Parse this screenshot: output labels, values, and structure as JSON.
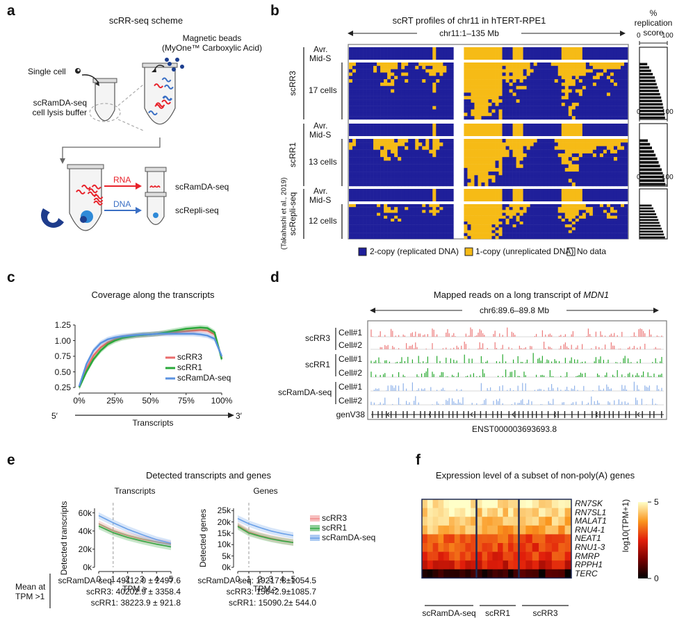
{
  "panels": {
    "a": "a",
    "b": "b",
    "c": "c",
    "d": "d",
    "e": "e",
    "f": "f"
  },
  "a": {
    "title": "scRR-seq scheme",
    "single_cell": "Single cell",
    "beads1": "Magnetic beads",
    "beads2": "(MyOne™ Carboxylic Acid)",
    "buffer1": "scRamDA-seq",
    "buffer2": "cell lysis buffer",
    "rna": "RNA",
    "dna": "DNA",
    "out_rna": "scRamDA-seq",
    "out_dna": "scRepli-seq",
    "colors": {
      "rna": "#e8222a",
      "dna": "#3a6fc4",
      "beads": "#1d3f8f",
      "magnet": "#1e3c8c"
    }
  },
  "b": {
    "title": "scRT profiles of chr11 in hTERT-RPE1",
    "region": "chr11:1–135 Mb",
    "score_label": [
      "%",
      "replication",
      "score"
    ],
    "groups": [
      {
        "name": "scRR3",
        "avg1": "Avr.",
        "avg2": "Mid-S",
        "cells": "17 cells",
        "n": 17,
        "scores": [
          28,
          35,
          42,
          48,
          55,
          58,
          62,
          66,
          70,
          74,
          78,
          81,
          84,
          86,
          88,
          90,
          92
        ]
      },
      {
        "name": "scRR1",
        "avg1": "Avr.",
        "avg2": "Mid-S",
        "cells": "13 cells",
        "n": 13,
        "scores": [
          30,
          38,
          45,
          52,
          58,
          64,
          69,
          74,
          80,
          84,
          87,
          90,
          93
        ]
      },
      {
        "name": "scRepli-seq",
        "sub": "(Takahashi et al., 2019)",
        "avg1": "Avr.",
        "avg2": "Mid-S",
        "cells": "12 cells",
        "n": 12,
        "scores": [
          44,
          50,
          55,
          60,
          64,
          68,
          72,
          76,
          80,
          85,
          88,
          92
        ]
      }
    ],
    "axis": {
      "min": "0",
      "max": "100"
    },
    "legend": {
      "rep": "2-copy (replicated DNA)",
      "unrep": "1-copy (unreplicated DNA)",
      "nodata": "No data"
    },
    "colors": {
      "rep": "#1f1f9a",
      "unrep": "#f6bb16"
    }
  },
  "c": {
    "title": "Coverage along the transcripts",
    "xlabel": "Transcripts",
    "five": "5′",
    "three": "3′",
    "chart_data": {
      "type": "line",
      "title": "Coverage along the transcripts",
      "xlabel": "Transcripts",
      "x_ticks": [
        "0%",
        "25%",
        "50%",
        "75%",
        "100%"
      ],
      "y_ticks": [
        "0.25",
        "0.50",
        "0.75",
        "1.00",
        "1.25"
      ],
      "ylim": [
        0.25,
        1.25
      ],
      "x": [
        0,
        5,
        10,
        15,
        20,
        25,
        30,
        35,
        40,
        45,
        50,
        55,
        60,
        65,
        70,
        75,
        80,
        85,
        90,
        95,
        100
      ],
      "series": [
        {
          "name": "scRR3",
          "color": "#ea6b6b",
          "values": [
            0.26,
            0.55,
            0.76,
            0.89,
            0.97,
            1.02,
            1.05,
            1.07,
            1.08,
            1.09,
            1.1,
            1.11,
            1.12,
            1.13,
            1.14,
            1.15,
            1.16,
            1.17,
            1.16,
            1.1,
            0.72
          ]
        },
        {
          "name": "scRR1",
          "color": "#2aa83a",
          "values": [
            0.25,
            0.5,
            0.7,
            0.84,
            0.94,
            1.0,
            1.04,
            1.06,
            1.08,
            1.09,
            1.1,
            1.11,
            1.13,
            1.15,
            1.17,
            1.19,
            1.2,
            1.21,
            1.2,
            1.13,
            0.7
          ]
        },
        {
          "name": "scRamDA-seq",
          "color": "#5a92e0",
          "values": [
            0.27,
            0.62,
            0.84,
            0.96,
            1.02,
            1.05,
            1.07,
            1.08,
            1.09,
            1.1,
            1.1,
            1.11,
            1.11,
            1.11,
            1.11,
            1.11,
            1.11,
            1.1,
            1.08,
            1.03,
            0.75
          ]
        }
      ]
    }
  },
  "d": {
    "title": "Mapped reads on a long transcript of ",
    "gene": "MDN1",
    "region": "chr6:89.6–89.8 Mb",
    "rows": [
      {
        "group": "scRR3",
        "cell": "Cell#1",
        "color": "#ec7a7a"
      },
      {
        "group": "",
        "cell": "Cell#2",
        "color": "#ec7a7a"
      },
      {
        "group": "scRR1",
        "cell": "Cell#1",
        "color": "#27a92e"
      },
      {
        "group": "",
        "cell": "Cell#2",
        "color": "#27a92e"
      },
      {
        "group": "scRamDA-seq",
        "cell": "Cell#1",
        "color": "#8fb2ea"
      },
      {
        "group": "",
        "cell": "Cell#2",
        "color": "#8fb2ea"
      }
    ],
    "genv": "genV38",
    "transcript": "ENST000003693693.8"
  },
  "e": {
    "title": "Detected transcripts and genes",
    "chart_data": [
      {
        "type": "line",
        "title": "Transcripts",
        "ylabel": "Detected transcripts",
        "xlabel": "TPM >",
        "x": [
          0,
          1,
          2,
          3,
          4,
          5
        ],
        "x_ticks": [
          "0",
          "1",
          "2",
          "3",
          "4",
          "5"
        ],
        "y_ticks": [
          "0k",
          "20k",
          "40k",
          "60k"
        ],
        "ylim": [
          0,
          65000
        ],
        "series": [
          {
            "name": "scRR3",
            "values": [
              48000,
              40200,
              35000,
              31000,
              28000,
              25500
            ]
          },
          {
            "name": "scRR1",
            "values": [
              45500,
              38200,
              33000,
              29000,
              25500,
              22500
            ]
          },
          {
            "name": "scRamDA-seq",
            "values": [
              57000,
              49100,
              42000,
              36000,
              30500,
              26500
            ]
          }
        ]
      },
      {
        "type": "line",
        "title": "Genes",
        "ylabel": "Detected genes",
        "xlabel": "TPM >",
        "x": [
          0,
          1,
          2,
          3,
          4,
          5
        ],
        "x_ticks": [
          "0",
          "1",
          "2",
          "3",
          "4",
          "5"
        ],
        "y_ticks": [
          "0k",
          "5k",
          "10k",
          "15k",
          "20k",
          "25k"
        ],
        "ylim": [
          0,
          26000
        ],
        "series": [
          {
            "name": "scRR3",
            "values": [
              18500,
              15600,
              14000,
              12800,
              11800,
              11000
            ]
          },
          {
            "name": "scRR1",
            "values": [
              18000,
              15100,
              13700,
              12500,
              11600,
              10900
            ]
          },
          {
            "name": "scRamDA-seq",
            "values": [
              21500,
              19200,
              17500,
              16000,
              14900,
              14000
            ]
          }
        ]
      }
    ],
    "legend": [
      {
        "name": "scRR3",
        "color": "#f08a8a"
      },
      {
        "name": "scRR1",
        "color": "#35a845"
      },
      {
        "name": "scRamDA-seq",
        "color": "#6aa0e8"
      }
    ],
    "mean_label": [
      "Mean at",
      "TPM >1"
    ],
    "means_t": [
      "scRamDA-seq: 49112.0 ± 2497.6",
      "scRR3: 40202.9 ± 3358.4",
      "scRR1: 38223.9 ± 921.8"
    ],
    "means_g": [
      "scRamDA-seq: 19217.8±1054.5",
      "scRR3: 15642.9±1085.7",
      "scRR1: 15090.2± 544.0"
    ]
  },
  "f": {
    "title": "Expression level of a subset of non-poly(A) genes",
    "genes": [
      "RN7SK",
      "RN7SL1",
      "MALAT1",
      "RNU4-1",
      "NEAT1",
      "RNU1-3",
      "RMRP",
      "RPPH1",
      "TERC"
    ],
    "groups": [
      "scRamDA-seq",
      "scRR1",
      "scRR3"
    ],
    "scale_label": "log10(TPM+1)",
    "scale_max": "5",
    "scale_min": "0",
    "chart_data": {
      "type": "heatmap",
      "rows": [
        "RN7SK",
        "RN7SL1",
        "MALAT1",
        "RNU4-1",
        "NEAT1",
        "RNU1-3",
        "RMRP",
        "RPPH1",
        "TERC"
      ],
      "columns": [
        "scRamDA-seq",
        "scRR1",
        "scRR3"
      ],
      "cells_per_group": [
        10,
        8,
        8
      ],
      "values": [
        [
          4.8,
          4.7,
          4.7
        ],
        [
          4.6,
          4.5,
          4.5
        ],
        [
          4.4,
          4.2,
          4.2
        ],
        [
          4.2,
          4.0,
          4.0
        ],
        [
          3.2,
          3.3,
          3.0
        ],
        [
          3.0,
          2.9,
          2.9
        ],
        [
          2.9,
          2.7,
          2.8
        ],
        [
          2.4,
          2.3,
          2.2
        ],
        [
          0.6,
          0.5,
          0.5
        ]
      ],
      "zlim": [
        0,
        5
      ]
    }
  }
}
